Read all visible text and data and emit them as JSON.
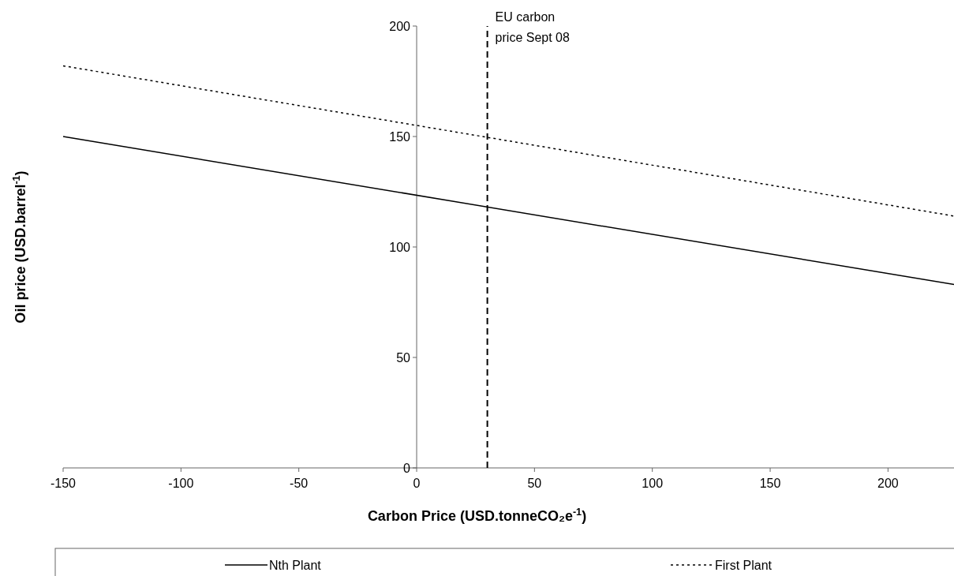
{
  "chart_data": {
    "type": "line",
    "xlabel": "Carbon Price (USD.tonneCO₂e$^{-1}$)",
    "ylabel": "Oil price (USD.barrel$^{-1}$)",
    "xlim": [
      -150,
      228
    ],
    "ylim": [
      0,
      200
    ],
    "xticks": [
      -150,
      -100,
      -50,
      0,
      50,
      100,
      150,
      200
    ],
    "yticks": [
      0,
      50,
      100,
      150,
      200
    ],
    "x": [
      -150,
      228
    ],
    "series": [
      {
        "name": "Nth Plant",
        "color": "#000000",
        "line_style": "solid",
        "values": [
          150,
          83
        ]
      },
      {
        "name": "First Plant",
        "color": "#000000",
        "line_style": "dotted",
        "values": [
          182,
          114
        ]
      }
    ],
    "ref_lines": [
      {
        "axis": "x",
        "value": 30,
        "label": "EU carbon\nprice Sept 08",
        "color": "#000000",
        "line_style": "dashed"
      }
    ],
    "legend": "bottom",
    "grid": false
  }
}
